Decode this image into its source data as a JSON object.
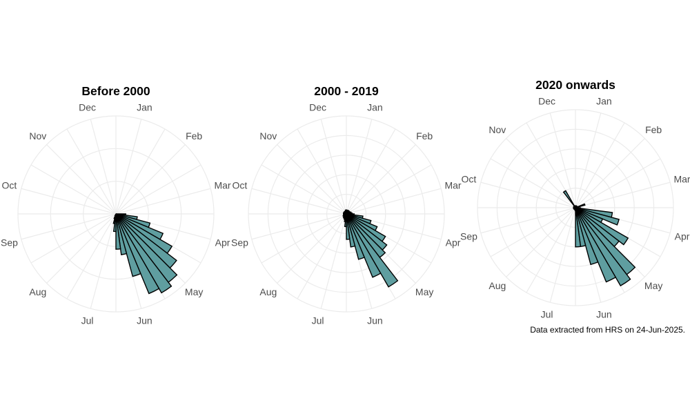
{
  "chart_data": [
    {
      "type": "bar",
      "coord": "polar",
      "title": "Before 2000",
      "month_labels": [
        "Jan",
        "Feb",
        "Mar",
        "Apr",
        "May",
        "Jun",
        "Jul",
        "Aug",
        "Sep",
        "Oct",
        "Nov",
        "Dec"
      ],
      "bins_per_month": 4,
      "rmax": 1.0,
      "values": [
        0,
        0,
        0,
        0,
        0,
        0,
        0,
        0,
        0,
        0,
        0,
        0,
        0.1,
        0.22,
        0.36,
        0.52,
        0.66,
        0.78,
        0.88,
        0.93,
        0.88,
        0.66,
        0.42,
        0.36,
        0.18,
        0.1,
        0.05,
        0.02,
        0,
        0,
        0,
        0,
        0,
        0,
        0,
        0,
        0,
        0,
        0,
        0,
        0,
        0,
        0,
        0,
        0,
        0,
        0,
        0
      ],
      "grid_rings": [
        0.333,
        0.667,
        1.0
      ],
      "fill_color": "#5f9ea0"
    },
    {
      "type": "bar",
      "coord": "polar",
      "title": "2000 - 2019",
      "month_labels": [
        "Jan",
        "Feb",
        "Mar",
        "Apr",
        "May",
        "Jun",
        "Jul",
        "Aug",
        "Sep",
        "Oct",
        "Nov",
        "Dec"
      ],
      "bins_per_month": 4,
      "rmax": 1.0,
      "values": [
        0.04,
        0.03,
        0.03,
        0.04,
        0.03,
        0.04,
        0.03,
        0.04,
        0.04,
        0.05,
        0.05,
        0.06,
        0.08,
        0.17,
        0.26,
        0.34,
        0.46,
        0.52,
        0.56,
        0.86,
        0.7,
        0.48,
        0.34,
        0.26,
        0.13,
        0.08,
        0.06,
        0.05,
        0.05,
        0.04,
        0.04,
        0.04,
        0.03,
        0.03,
        0.03,
        0.03,
        0.03,
        0.03,
        0.03,
        0.03,
        0.03,
        0.03,
        0.03,
        0.03,
        0.03,
        0.03,
        0.04,
        0.04
      ],
      "grid_rings": [
        0.2,
        0.4,
        0.6,
        0.8,
        1.0
      ],
      "fill_color": "#5f9ea0"
    },
    {
      "type": "bar",
      "coord": "polar",
      "title": "2020 onwards",
      "month_labels": [
        "Jan",
        "Feb",
        "Mar",
        "Apr",
        "May",
        "Jun",
        "Jul",
        "Aug",
        "Sep",
        "Oct",
        "Nov",
        "Dec"
      ],
      "bins_per_month": 4,
      "rmax": 1.0,
      "values": [
        0.02,
        0.02,
        0.02,
        0.02,
        0.02,
        0.02,
        0.02,
        0.02,
        0.02,
        0.1,
        0.03,
        0.03,
        0.05,
        0.38,
        0.46,
        0.3,
        0.62,
        0.56,
        0.86,
        0.92,
        0.82,
        0.6,
        0.4,
        0.4,
        0.03,
        0.02,
        0.02,
        0.02,
        0.02,
        0.02,
        0.02,
        0.02,
        0.02,
        0.02,
        0.02,
        0.02,
        0.02,
        0.02,
        0.02,
        0.02,
        0.02,
        0.02,
        0.02,
        0.2,
        0.02,
        0.02,
        0.02,
        0.02
      ],
      "grid_rings": [
        0.2,
        0.4,
        0.6,
        0.8,
        1.0
      ],
      "fill_color": "#5f9ea0"
    }
  ],
  "caption": "Data extracted from HRS on 24-Jun-2025."
}
